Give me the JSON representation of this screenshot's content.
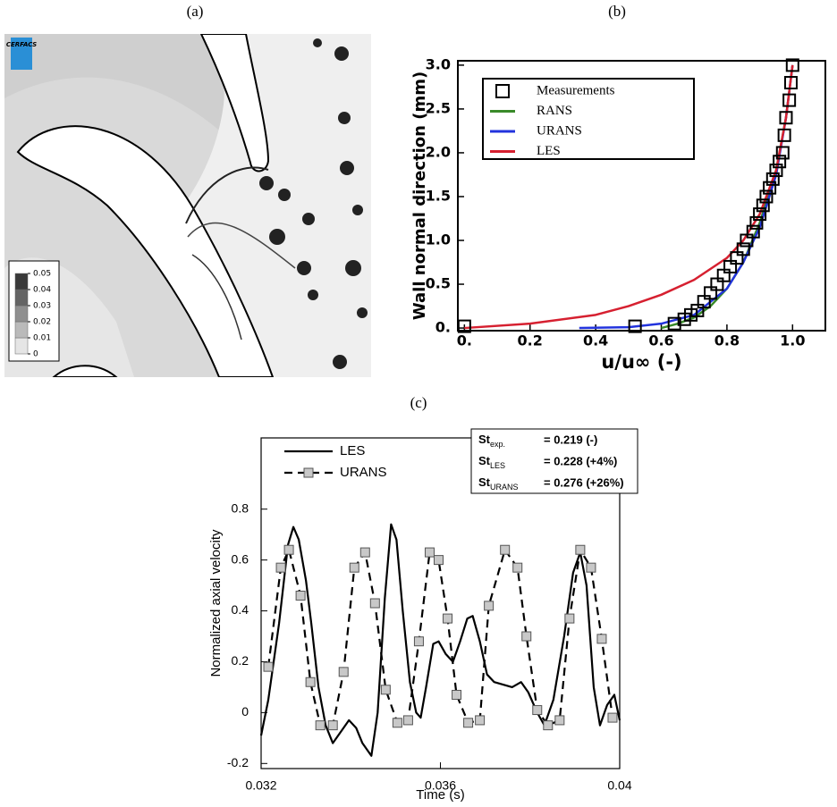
{
  "chart_data": [
    {
      "type": "contour",
      "panel_label": "(a)",
      "logo": "CERFACS",
      "clim": [
        0,
        0.05
      ],
      "cticks": [
        0,
        0.01,
        0.02,
        0.03,
        0.04,
        0.05
      ]
    },
    {
      "type": "line",
      "panel_label": "(b)",
      "xlabel": "u/u∞ (-)",
      "ylabel": "Wall normal direction (mm)",
      "xlim": [
        -0.02,
        1.1
      ],
      "ylim": [
        -0.03,
        3.05
      ],
      "xticks": [
        {
          "value": 0,
          "label": "0."
        },
        0.2,
        0.4,
        0.6,
        0.8,
        {
          "value": 1,
          "label": "1.0"
        }
      ],
      "yticks": [
        {
          "value": 0,
          "label": "0."
        },
        0.5,
        {
          "value": 1,
          "label": "1.0"
        },
        1.5,
        {
          "value": 2,
          "label": "2.0"
        },
        2.5,
        {
          "value": 3,
          "label": "3.0"
        }
      ],
      "legend": "upper left",
      "series": [
        {
          "name": "Measurements",
          "color": "#000000",
          "line": false,
          "marker": "square",
          "x": [
            0,
            0.52,
            0.64,
            0.67,
            0.69,
            0.71,
            0.73,
            0.75,
            0.77,
            0.79,
            0.81,
            0.83,
            0.85,
            0.86,
            0.88,
            0.89,
            0.9,
            0.91,
            0.92,
            0.93,
            0.94,
            0.95,
            0.96,
            0.97,
            0.975,
            0.98,
            0.99,
            0.995,
            1.0
          ],
          "values": [
            0.02,
            0.02,
            0.05,
            0.1,
            0.15,
            0.2,
            0.3,
            0.4,
            0.5,
            0.6,
            0.7,
            0.8,
            0.9,
            1.0,
            1.1,
            1.2,
            1.3,
            1.4,
            1.5,
            1.6,
            1.7,
            1.8,
            1.9,
            2.0,
            2.2,
            2.4,
            2.6,
            2.8,
            3.0
          ]
        },
        {
          "name": "RANS",
          "color": "#3a8a2a",
          "x": [
            0.6,
            0.65,
            0.7,
            0.75,
            0.8,
            0.85,
            0.9,
            0.95,
            0.98,
            1.0
          ],
          "values": [
            0,
            0.05,
            0.12,
            0.25,
            0.45,
            0.75,
            1.2,
            1.8,
            2.4,
            3.0
          ]
        },
        {
          "name": "URANS",
          "color": "#2233dd",
          "x": [
            0.35,
            0.5,
            0.6,
            0.7,
            0.8,
            0.85,
            0.9,
            0.95,
            0.98,
            1.0
          ],
          "values": [
            0,
            0.01,
            0.05,
            0.15,
            0.45,
            0.75,
            1.15,
            1.75,
            2.4,
            3.0
          ]
        },
        {
          "name": "LES",
          "color": "#d62030",
          "x": [
            0,
            0.2,
            0.4,
            0.5,
            0.6,
            0.7,
            0.8,
            0.85,
            0.9,
            0.95,
            0.98,
            1.0
          ],
          "values": [
            0,
            0.05,
            0.15,
            0.25,
            0.38,
            0.55,
            0.8,
            1.0,
            1.3,
            1.8,
            2.4,
            3.0
          ]
        }
      ]
    },
    {
      "type": "line",
      "panel_label": "(c)",
      "xlabel": "Time (s)",
      "ylabel": "Normalized axial velocity",
      "xlim": [
        0.032,
        0.04
      ],
      "ylim": [
        -0.22,
        1.08
      ],
      "xticks": [
        0.032,
        0.036,
        0.04
      ],
      "yticks": [
        -0.2,
        0,
        0.2,
        0.4,
        0.6,
        0.8
      ],
      "legend": "upper left",
      "series": [
        {
          "name": "LES",
          "color": "#000000",
          "x": [
            0.032,
            0.03216,
            0.0324,
            0.0326,
            0.03272,
            0.03284,
            0.033,
            0.03312,
            0.03328,
            0.03344,
            0.0336,
            0.03376,
            0.03396,
            0.03412,
            0.03426,
            0.03446,
            0.0346,
            0.03476,
            0.0349,
            0.03502,
            0.03516,
            0.03532,
            0.03546,
            0.03556,
            0.03568,
            0.03584,
            0.03596,
            0.03612,
            0.03628,
            0.03644,
            0.0366,
            0.03672,
            0.03688,
            0.03704,
            0.0372,
            0.0374,
            0.0376,
            0.0378,
            0.03796,
            0.03816,
            0.03832,
            0.03852,
            0.03876,
            0.03896,
            0.03912,
            0.03926,
            0.03942,
            0.03956,
            0.03972,
            0.03988,
            0.04
          ],
          "values": [
            -0.09,
            0.05,
            0.35,
            0.66,
            0.73,
            0.68,
            0.52,
            0.35,
            0.1,
            -0.05,
            -0.12,
            -0.08,
            -0.03,
            -0.06,
            -0.12,
            -0.17,
            0.0,
            0.45,
            0.74,
            0.68,
            0.4,
            0.12,
            0.0,
            -0.02,
            0.1,
            0.27,
            0.28,
            0.23,
            0.2,
            0.28,
            0.37,
            0.38,
            0.28,
            0.15,
            0.12,
            0.11,
            0.1,
            0.12,
            0.08,
            0.0,
            -0.05,
            0.05,
            0.3,
            0.55,
            0.63,
            0.5,
            0.1,
            -0.05,
            0.03,
            0.07,
            -0.03
          ]
        },
        {
          "name": "URANS",
          "color": "#000000",
          "dash": true,
          "marker": "square",
          "marker_color": "#c8c8c8",
          "x": [
            0.03216,
            0.03244,
            0.03262,
            0.03288,
            0.0331,
            0.03332,
            0.0336,
            0.03384,
            0.03408,
            0.03432,
            0.03454,
            0.03478,
            0.03504,
            0.03528,
            0.03552,
            0.03576,
            0.03596,
            0.03616,
            0.03636,
            0.03662,
            0.03688,
            0.03708,
            0.03744,
            0.03772,
            0.03792,
            0.03816,
            0.0384,
            0.03866,
            0.03888,
            0.03912,
            0.03936,
            0.0396,
            0.03984
          ],
          "values": [
            0.18,
            0.57,
            0.64,
            0.46,
            0.12,
            -0.05,
            -0.05,
            0.16,
            0.57,
            0.63,
            0.43,
            0.09,
            -0.04,
            -0.03,
            0.28,
            0.63,
            0.6,
            0.37,
            0.07,
            -0.04,
            -0.03,
            0.42,
            0.64,
            0.57,
            0.3,
            0.01,
            -0.05,
            -0.03,
            0.37,
            0.64,
            0.57,
            0.29,
            -0.02
          ]
        }
      ],
      "annotation_box": [
        {
          "symbol": "St",
          "sub": "exp.",
          "text": "= 0.219 (-)"
        },
        {
          "symbol": "St",
          "sub": "LES",
          "text": "= 0.228 (+4%)"
        },
        {
          "symbol": "St",
          "sub": "URANS",
          "text": "= 0.276 (+26%)"
        }
      ]
    }
  ]
}
